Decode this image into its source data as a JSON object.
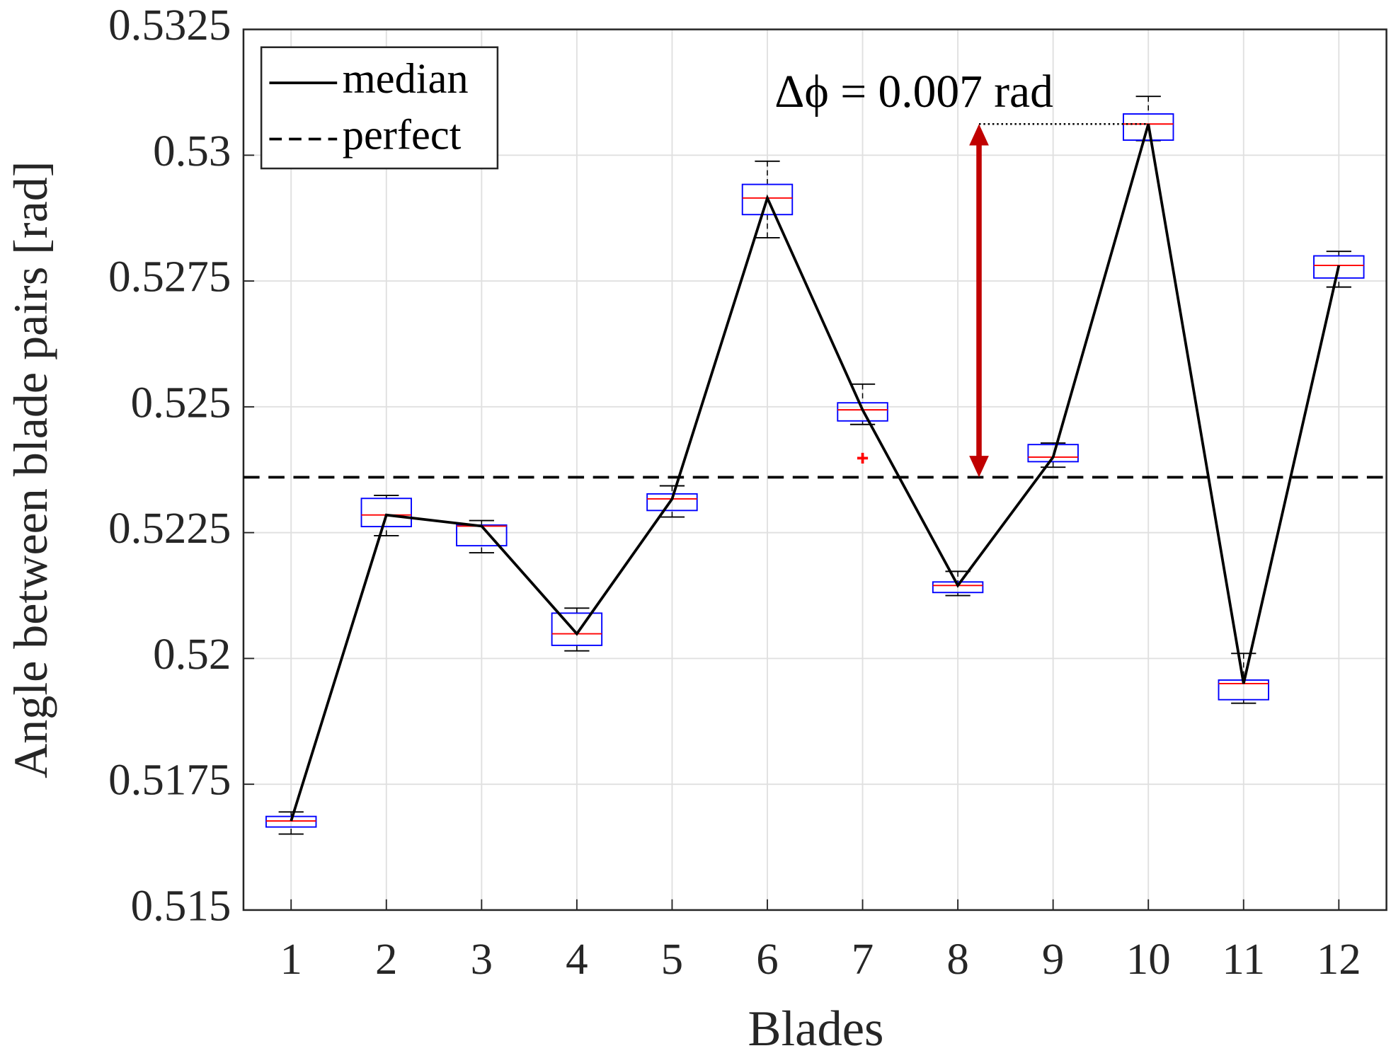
{
  "chart_data": {
    "type": "box",
    "x_label": "Blades",
    "y_label": "Angle between blade pairs [rad]",
    "annotation": "Δϕ = 0.007 rad",
    "categories": [
      "1",
      "2",
      "3",
      "4",
      "5",
      "6",
      "7",
      "8",
      "9",
      "10",
      "11",
      "12"
    ],
    "series": [
      {
        "name": "median",
        "color": "#000000",
        "values": [
          0.51677,
          0.52285,
          0.52263,
          0.52049,
          0.52317,
          0.52915,
          0.52494,
          0.52145,
          0.524,
          0.53062,
          0.5195,
          0.52781
        ]
      },
      {
        "name": "perfect",
        "color": "#000000",
        "value": 0.5236
      }
    ],
    "boxes": [
      {
        "q1": 0.51665,
        "q3": 0.51686,
        "whislo": 0.51651,
        "whishi": 0.51695
      },
      {
        "q1": 0.52262,
        "q3": 0.52318,
        "whislo": 0.52244,
        "whishi": 0.52324
      },
      {
        "q1": 0.52224,
        "q3": 0.52265,
        "whislo": 0.5221,
        "whishi": 0.52274
      },
      {
        "q1": 0.52026,
        "q3": 0.5209,
        "whislo": 0.52015,
        "whishi": 0.521
      },
      {
        "q1": 0.52294,
        "q3": 0.52327,
        "whislo": 0.52281,
        "whishi": 0.52343
      },
      {
        "q1": 0.52882,
        "q3": 0.52942,
        "whislo": 0.52836,
        "whishi": 0.52988
      },
      {
        "q1": 0.52472,
        "q3": 0.52508,
        "whislo": 0.52465,
        "whishi": 0.52545,
        "outliers": [
          0.52398
        ]
      },
      {
        "q1": 0.52131,
        "q3": 0.52152,
        "whislo": 0.52125,
        "whishi": 0.52173
      },
      {
        "q1": 0.52391,
        "q3": 0.52425,
        "whislo": 0.5238,
        "whishi": 0.52428
      },
      {
        "q1": 0.5303,
        "q3": 0.53082,
        "whislo": 0.53029,
        "whishi": 0.53117
      },
      {
        "q1": 0.51918,
        "q3": 0.51957,
        "whislo": 0.51911,
        "whishi": 0.5201
      },
      {
        "q1": 0.52756,
        "q3": 0.528,
        "whislo": 0.52738,
        "whishi": 0.52809
      }
    ],
    "box_color": "#0000ff",
    "median_mark_color": "#ff0000",
    "arrow_color": "#c00000",
    "xlim": [
      0.5,
      12.5
    ],
    "ylim": [
      0.515,
      0.5325
    ],
    "yticks": [
      0.515,
      0.5175,
      0.52,
      0.5225,
      0.525,
      0.5275,
      0.53,
      0.5325
    ],
    "grid": true,
    "legend": "upper left"
  }
}
